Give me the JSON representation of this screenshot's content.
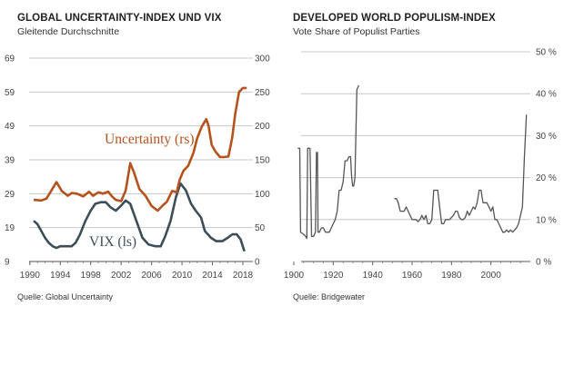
{
  "left_panel": {
    "title": "GLOBAL UNCERTAINTY-INDEX UND VIX",
    "subtitle": "Gleitende Durchschnitte",
    "source": "Quelle: Global Uncertainty"
  },
  "right_panel": {
    "title": "DEVELOPED WORLD POPULISM-INDEX",
    "subtitle": "Vote Share of Populist Parties",
    "source": "Quelle: Bridgewater"
  },
  "colors": {
    "uncertainty": "#b5521d",
    "vix": "#3d4e58",
    "populism": "#555555",
    "grid": "#c8c8c8"
  },
  "chart_data": [
    {
      "type": "line",
      "title": "GLOBAL UNCERTAINTY-INDEX UND VIX",
      "subtitle": "Gleitende Durchschnitte",
      "xlim": [
        1990.5,
        2018.6
      ],
      "x_ticks": [
        "1990",
        "1994",
        "1998",
        "2002",
        "2006",
        "2010",
        "2014",
        "2018"
      ],
      "y_left": {
        "lim": [
          9,
          69
        ],
        "ticks": [
          "9",
          "19",
          "29",
          "39",
          "49",
          "59",
          "69"
        ]
      },
      "y_right": {
        "lim": [
          0,
          300
        ],
        "ticks": [
          "0",
          "50",
          "100",
          "150",
          "200",
          "250",
          "300"
        ]
      },
      "grid": "horizontal",
      "series": [
        {
          "name": "Uncertainty (rs)",
          "axis": "right",
          "x": [
            1990.5,
            1991.5,
            1992.2,
            1993.0,
            1993.5,
            1994.2,
            1995.0,
            1995.5,
            1996.2,
            1997.0,
            1997.8,
            1998.3,
            1999.0,
            1999.6,
            2000.3,
            2000.8,
            2001.3,
            2002.0,
            2002.6,
            2003.2,
            2003.7,
            2004.4,
            2005.2,
            2006.0,
            2006.8,
            2007.5,
            2008.0,
            2008.7,
            2009.3,
            2009.7,
            2010.2,
            2010.8,
            2011.5,
            2012.0,
            2012.6,
            2013.2,
            2013.5,
            2013.9,
            2014.4,
            2015.0,
            2015.5,
            2016.1,
            2016.6,
            2017.0,
            2017.5,
            2018.0,
            2018.5
          ],
          "values": [
            91,
            90,
            93,
            108,
            117,
            104,
            97,
            101,
            100,
            96,
            103,
            97,
            102,
            100,
            103,
            96,
            91,
            89,
            105,
            145,
            131,
            107,
            97,
            82,
            75,
            83,
            88,
            104,
            102,
            121,
            134,
            141,
            160,
            182,
            199,
            210,
            200,
            172,
            162,
            154,
            154,
            155,
            183,
            218,
            250,
            256,
            256
          ]
        },
        {
          "name": "VIX (ls)",
          "axis": "left",
          "x": [
            1990.5,
            1991.0,
            1991.5,
            1992.0,
            1992.5,
            1993.0,
            1993.5,
            1994.0,
            1994.7,
            1995.5,
            1996.0,
            1996.6,
            1997.3,
            1998.0,
            1998.6,
            1999.3,
            2000.0,
            2000.6,
            2001.3,
            2002.0,
            2002.6,
            2003.2,
            2004.0,
            2004.8,
            2005.6,
            2006.5,
            2007.2,
            2007.8,
            2008.5,
            2009.2,
            2009.8,
            2010.5,
            2011.2,
            2011.8,
            2012.5,
            2013.0,
            2013.8,
            2014.5,
            2015.3,
            2016.0,
            2016.6,
            2017.2,
            2017.7,
            2018.2
          ],
          "values": [
            21,
            20,
            18,
            16,
            14.5,
            13.5,
            13,
            13.5,
            13.5,
            13.5,
            14.5,
            17,
            21,
            24,
            26,
            26.5,
            26.5,
            25,
            24,
            25.5,
            27,
            26,
            21,
            16,
            14,
            13.5,
            13.5,
            16.5,
            21,
            28,
            32,
            30,
            26,
            24,
            22,
            18,
            16,
            15,
            15,
            16,
            17,
            17,
            15.5,
            12
          ]
        }
      ],
      "annotations": [
        "Uncertainty (rs)",
        "VIX (ls)"
      ]
    },
    {
      "type": "line",
      "title": "DEVELOPED WORLD POPULISM-INDEX",
      "subtitle": "Vote Share of Populist Parties",
      "xlim": [
        1900,
        2020
      ],
      "x_ticks": [
        "1900",
        "1920",
        "1940",
        "1960",
        "1980",
        "2000"
      ],
      "ylim": [
        0,
        50
      ],
      "y_ticks": [
        "0 %",
        "10 %",
        "20 %",
        "30 %",
        "40 %",
        "50 %"
      ],
      "grid": "horizontal",
      "series": [
        {
          "segments": [
            {
              "x": [
                1902,
                1903,
                1903.4,
                1905,
                1906,
                1906.6,
                1907,
                1908.2,
                1909,
                1910,
                1911,
                1911.5,
                1912,
                1912.3,
                1913,
                1914,
                1915,
                1916,
                1917,
                1918,
                1919,
                1920,
                1921,
                1922,
                1923,
                1924,
                1925,
                1926,
                1927,
                1928,
                1928.8,
                1929.2,
                1929.8,
                1930.4,
                1931,
                1932,
                1933
              ],
              "values": [
                27,
                27,
                7,
                6.5,
                6,
                5.5,
                27,
                27,
                6,
                6,
                7,
                26,
                26,
                7,
                7,
                8,
                8,
                7,
                7,
                7,
                8,
                9,
                10,
                12,
                17,
                17,
                19,
                24,
                24,
                25,
                25,
                21,
                18,
                18,
                20,
                41,
                42
              ]
            },
            {
              "x": [
                1951,
                1952,
                1953,
                1954,
                1955,
                1956,
                1957,
                1958,
                1959,
                1960,
                1961,
                1962,
                1963,
                1964,
                1965,
                1966,
                1967,
                1968,
                1969,
                1970,
                1971,
                1972,
                1973,
                1974,
                1975,
                1976,
                1977,
                1978,
                1979,
                1980,
                1981,
                1982,
                1983,
                1984,
                1985,
                1986,
                1987,
                1988,
                1989,
                1990,
                1991,
                1992,
                1993,
                1994,
                1995,
                1996,
                1997,
                1998,
                1999,
                2000,
                2001,
                2002,
                2003,
                2004,
                2005,
                2006,
                2007,
                2008,
                2009,
                2010,
                2011,
                2012,
                2013,
                2014,
                2015,
                2016,
                2017,
                2018
              ],
              "values": [
                15,
                15,
                14,
                12,
                12,
                12,
                13,
                12,
                11,
                10,
                10,
                10,
                9.5,
                10,
                11,
                10,
                11,
                9,
                9,
                10,
                17,
                17,
                17,
                13,
                9,
                9,
                10,
                10,
                10,
                10.5,
                11,
                12,
                12,
                10.5,
                10,
                10,
                10.5,
                12,
                11,
                12,
                13,
                12.5,
                14,
                17,
                17,
                14,
                14,
                14,
                13,
                12,
                13,
                10,
                10,
                9,
                8,
                7,
                7,
                7.5,
                7,
                7.5,
                7,
                7.5,
                8,
                9,
                11,
                13,
                25,
                35
              ]
            }
          ]
        }
      ]
    }
  ]
}
